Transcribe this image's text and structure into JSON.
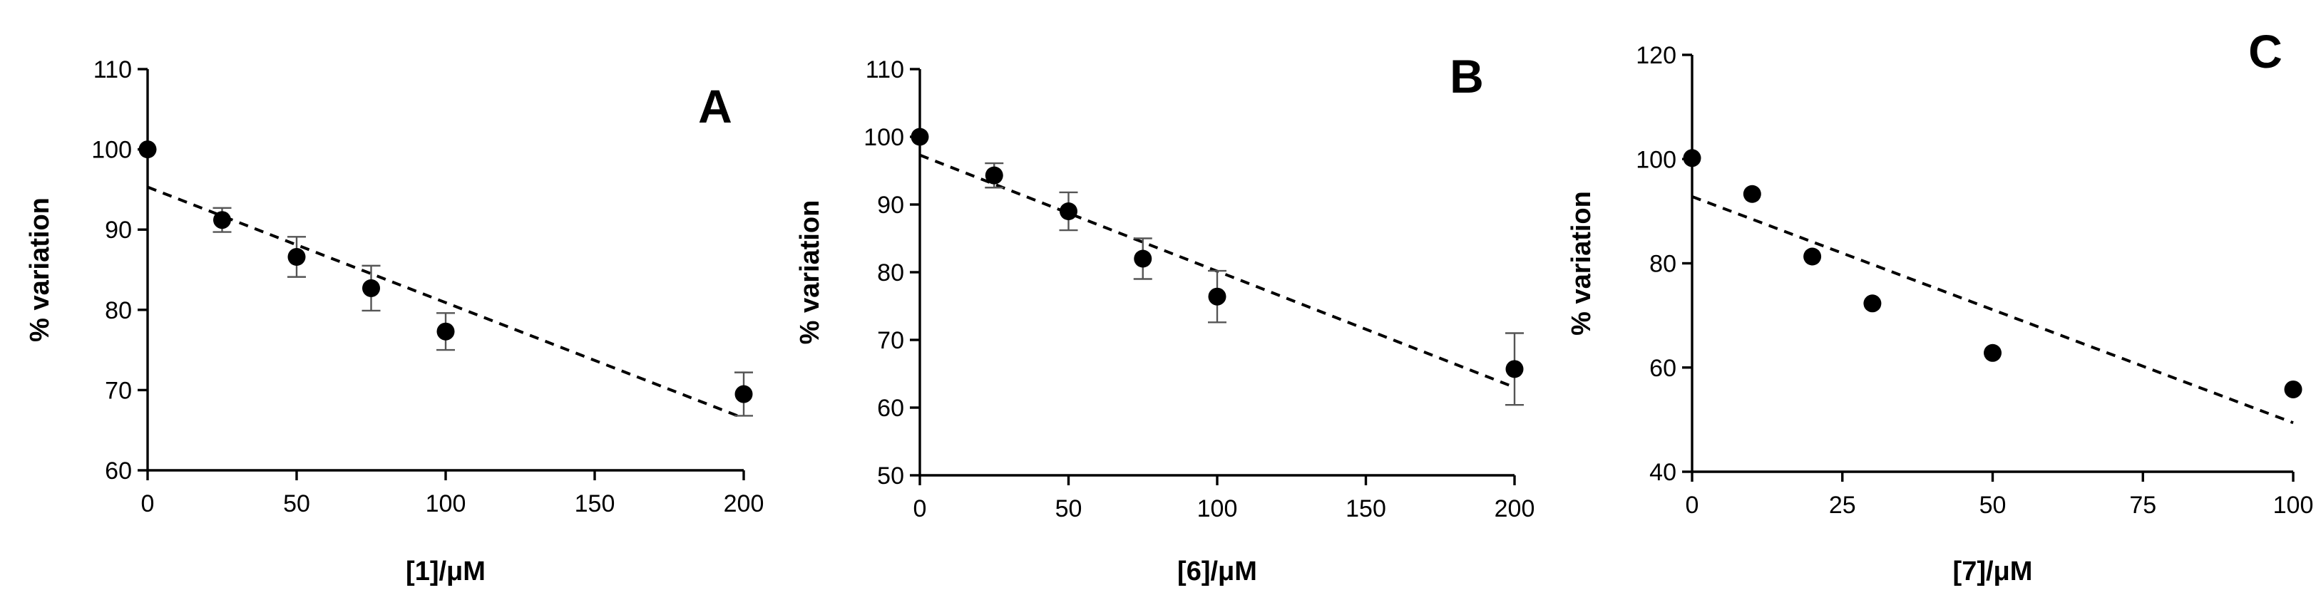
{
  "chart_data": [
    {
      "type": "scatter",
      "panel_label": "A",
      "xlabel": "[1]/μM",
      "ylabel": "% variation",
      "xlim": [
        0,
        200
      ],
      "ylim": [
        60,
        110
      ],
      "xticks": [
        "0",
        "50",
        "100",
        "150",
        "200"
      ],
      "yticks": [
        "60",
        "70",
        "80",
        "90",
        "100",
        "110"
      ],
      "series": [
        {
          "x": [
            0,
            25,
            50,
            75,
            100,
            200
          ],
          "y": [
            100,
            91.2,
            86.6,
            82.7,
            77.3,
            69.5
          ],
          "error": [
            0,
            1.5,
            2.5,
            2.8,
            2.3,
            2.7
          ]
        }
      ],
      "trendline": {
        "style": "dashed",
        "x": [
          0,
          200
        ],
        "y": [
          95.3,
          66.5
        ]
      }
    },
    {
      "type": "scatter",
      "panel_label": "B",
      "xlabel": "[6]/μM",
      "ylabel": "% variation",
      "xlim": [
        0,
        200
      ],
      "ylim": [
        50,
        110
      ],
      "xticks": [
        "0",
        "50",
        "100",
        "150",
        "200"
      ],
      "yticks": [
        "50",
        "60",
        "70",
        "80",
        "90",
        "100",
        "110"
      ],
      "series": [
        {
          "x": [
            0,
            25,
            50,
            75,
            100,
            200
          ],
          "y": [
            100,
            94.3,
            89,
            82,
            76.4,
            65.7
          ],
          "error": [
            0,
            1.8,
            2.8,
            3.0,
            3.8,
            5.3
          ]
        }
      ],
      "trendline": {
        "style": "dashed",
        "x": [
          0,
          200
        ],
        "y": [
          97.3,
          63
        ]
      }
    },
    {
      "type": "scatter",
      "panel_label": "C",
      "xlabel": "[7]/μM",
      "ylabel": "% variation",
      "xlim": [
        0,
        100
      ],
      "ylim": [
        40,
        120
      ],
      "xticks": [
        "0",
        "25",
        "50",
        "75",
        "100"
      ],
      "yticks": [
        "40",
        "60",
        "80",
        "100",
        "120"
      ],
      "series": [
        {
          "x": [
            0,
            10,
            20,
            30,
            50,
            100
          ],
          "y": [
            100.2,
            93.3,
            81.3,
            72.3,
            62.8,
            55.8
          ],
          "error": [
            0,
            0,
            0,
            0,
            0,
            0
          ]
        }
      ],
      "trendline": {
        "style": "dashed",
        "x": [
          0,
          100
        ],
        "y": [
          92.8,
          49.4
        ]
      }
    }
  ]
}
